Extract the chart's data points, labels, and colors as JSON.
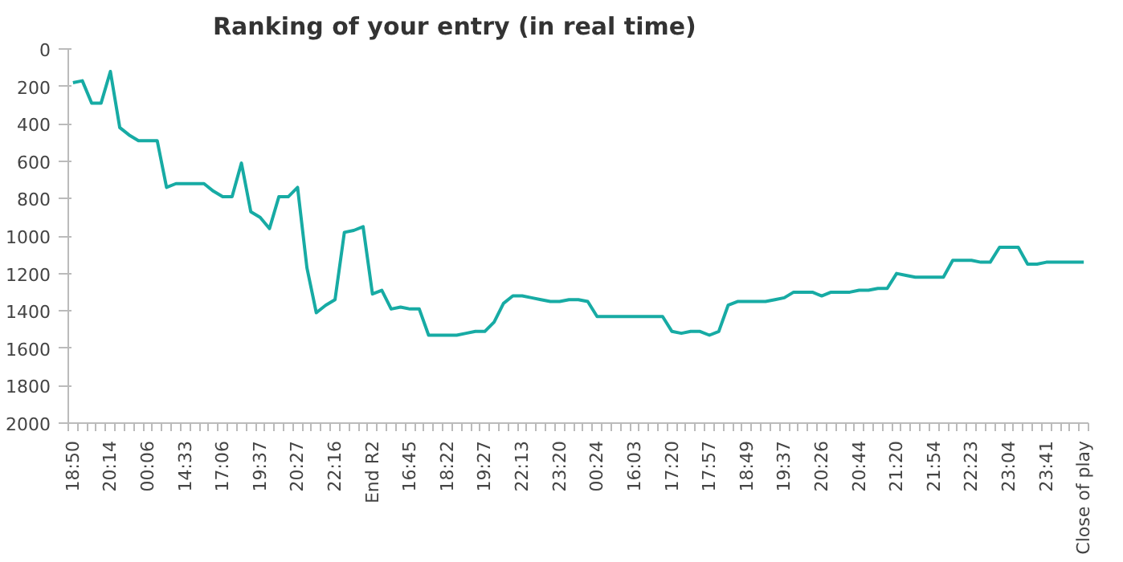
{
  "chart_data": {
    "type": "line",
    "title": "Ranking of your entry (in real time)",
    "categories": [
      "18:50",
      null,
      null,
      null,
      "20:14",
      null,
      null,
      null,
      "00:06",
      null,
      null,
      null,
      "14:33",
      null,
      null,
      null,
      "17:06",
      null,
      null,
      null,
      "19:37",
      null,
      null,
      null,
      "20:27",
      null,
      null,
      null,
      "22:16",
      null,
      null,
      null,
      "End R2",
      null,
      null,
      null,
      "16:45",
      null,
      null,
      null,
      "18:22",
      null,
      null,
      null,
      "19:27",
      null,
      null,
      null,
      "22:13",
      null,
      null,
      null,
      "23:20",
      null,
      null,
      null,
      "00:24",
      null,
      null,
      null,
      "16:03",
      null,
      null,
      null,
      "17:20",
      null,
      null,
      null,
      "17:57",
      null,
      null,
      null,
      "18:49",
      null,
      null,
      null,
      "19:37",
      null,
      null,
      null,
      "20:26",
      null,
      null,
      null,
      "20:44",
      null,
      null,
      null,
      "21:20",
      null,
      null,
      null,
      "21:54",
      null,
      null,
      null,
      "22:23",
      null,
      null,
      null,
      "23:04",
      null,
      null,
      null,
      "23:41",
      null,
      null,
      null,
      "Close of play"
    ],
    "series": [
      {
        "color": "#17aba4",
        "values": [
          180,
          170,
          290,
          290,
          120,
          420,
          460,
          490,
          490,
          490,
          740,
          720,
          720,
          720,
          720,
          760,
          790,
          790,
          610,
          870,
          900,
          960,
          790,
          790,
          740,
          1170,
          1410,
          1370,
          1340,
          980,
          970,
          950,
          1310,
          1290,
          1390,
          1380,
          1390,
          1390,
          1530,
          1530,
          1530,
          1530,
          1520,
          1510,
          1510,
          1460,
          1360,
          1320,
          1320,
          1330,
          1340,
          1350,
          1350,
          1340,
          1340,
          1350,
          1430,
          1430,
          1430,
          1430,
          1430,
          1430,
          1430,
          1430,
          1510,
          1520,
          1510,
          1510,
          1530,
          1510,
          1370,
          1350,
          1350,
          1350,
          1350,
          1340,
          1330,
          1300,
          1300,
          1300,
          1320,
          1300,
          1300,
          1300,
          1290,
          1290,
          1280,
          1280,
          1200,
          1210,
          1220,
          1220,
          1220,
          1220,
          1130,
          1130,
          1130,
          1140,
          1140,
          1060,
          1060,
          1060,
          1150,
          1150,
          1140,
          1140,
          1140,
          1140,
          1140
        ]
      }
    ],
    "ylim": [
      2000,
      0
    ],
    "yticks": [
      0,
      200,
      400,
      600,
      800,
      1000,
      1200,
      1400,
      1600,
      1800,
      2000
    ],
    "grid": false,
    "marker": "none",
    "line_style": "solid"
  }
}
